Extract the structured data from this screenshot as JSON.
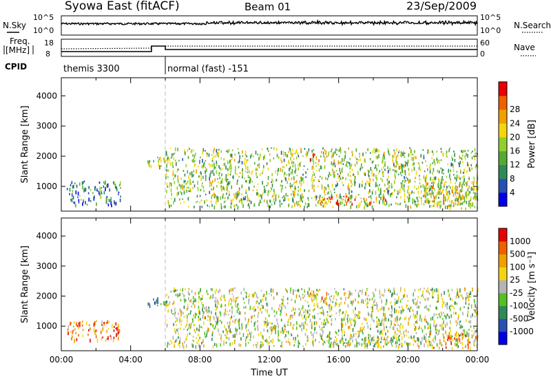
{
  "header": {
    "station": "Syowa East (fitACF)",
    "beam": "Beam 01",
    "date": "23/Sep/2009"
  },
  "strip_labels": {
    "nsky": "N.Sky",
    "nsky_ticks": [
      "10^5",
      "10^0"
    ],
    "nsearch": "N.Search",
    "freq": [
      "Freq.",
      "[MHz]"
    ],
    "freq_ticks": [
      "18",
      "8"
    ],
    "nave": "Nave",
    "nave_ticks": [
      "60",
      "0"
    ],
    "cpid": "CPID",
    "cpid_segments": [
      {
        "label": "themis 3300",
        "start_hour": 0,
        "end_hour": 6
      },
      {
        "label": "normal (fast) -151",
        "start_hour": 6,
        "end_hour": 24
      }
    ]
  },
  "chart_data": [
    {
      "type": "heatmap",
      "title": "Power",
      "xlabel": "Time UT",
      "ylabel": "Slant Range [km]",
      "x_ticks": [
        "00:00",
        "04:00",
        "08:00",
        "12:00",
        "16:00",
        "20:00",
        "00:00"
      ],
      "xlim": [
        0,
        24
      ],
      "y_ticks": [
        1000,
        2000,
        3000,
        4000
      ],
      "ylim": [
        180,
        4600
      ],
      "colorbar": {
        "label": "Power [dB]",
        "ticks": [
          "4",
          "8",
          "12",
          "16",
          "20",
          "24",
          "28"
        ],
        "colors": [
          "#0000e6",
          "#2850b4",
          "#2e8b57",
          "#55aa35",
          "#8fd12c",
          "#f5d510",
          "#f0a000",
          "#f06000",
          "#e60000"
        ]
      },
      "echo_regions": [
        {
          "t0": 0.3,
          "t1": 3.4,
          "r0": 400,
          "r1": 1200,
          "level": 0.25
        },
        {
          "t0": 4.9,
          "t1": 6.0,
          "r0": 1700,
          "r1": 2000,
          "level": 0.45
        },
        {
          "t0": 6.0,
          "t1": 24.0,
          "r0": 350,
          "r1": 2300,
          "level": 0.45
        },
        {
          "t0": 14.8,
          "t1": 19.0,
          "r0": 450,
          "r1": 700,
          "level": 0.85
        },
        {
          "t0": 14.3,
          "t1": 15.3,
          "r0": 1900,
          "r1": 2200,
          "level": 0.7
        },
        {
          "t0": 21.0,
          "t1": 24.0,
          "r0": 300,
          "r1": 1200,
          "level": 0.6
        }
      ]
    },
    {
      "type": "heatmap",
      "title": "Velocity",
      "xlabel": "Time UT",
      "ylabel": "Slant Range [km]",
      "x_ticks": [
        "00:00",
        "04:00",
        "08:00",
        "12:00",
        "16:00",
        "20:00",
        "00:00"
      ],
      "xlim": [
        0,
        24
      ],
      "y_ticks": [
        1000,
        2000,
        3000,
        4000
      ],
      "ylim": [
        180,
        4600
      ],
      "colorbar": {
        "label": "Velocity [m s⁻¹]",
        "ticks": [
          "1000",
          "500",
          "100",
          "25",
          "-25",
          "-100",
          "-500",
          "-1000"
        ],
        "colors": [
          "#0000e6",
          "#2850b4",
          "#2e8b57",
          "#55c020",
          "#b4b4b4",
          "#f5d510",
          "#f0a000",
          "#f06000",
          "#e60000"
        ]
      },
      "echo_regions": [
        {
          "t0": 0.3,
          "t1": 3.4,
          "r0": 550,
          "r1": 1200,
          "level": 0.8
        },
        {
          "t0": 4.9,
          "t1": 6.0,
          "r0": 1700,
          "r1": 2000,
          "level": 0.3
        },
        {
          "t0": 6.0,
          "t1": 24.0,
          "r0": 350,
          "r1": 2300,
          "level": 0.5
        },
        {
          "t0": 15.0,
          "t1": 19.5,
          "r0": 350,
          "r1": 700,
          "level": 0.5
        },
        {
          "t0": 14.3,
          "t1": 15.3,
          "r0": 1900,
          "r1": 2200,
          "level": 0.65
        },
        {
          "t0": 20.5,
          "t1": 24.0,
          "r0": 300,
          "r1": 800,
          "level": 0.7
        }
      ]
    }
  ]
}
